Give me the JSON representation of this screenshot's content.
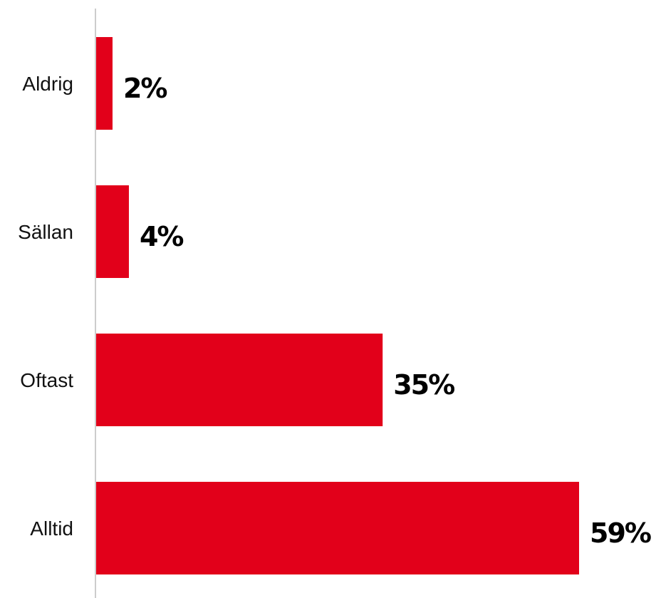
{
  "chart_data": {
    "type": "bar",
    "orientation": "horizontal",
    "categories": [
      "Aldrig",
      "Sällan",
      "Oftast",
      "Alltid"
    ],
    "values": [
      2,
      4,
      35,
      59
    ],
    "value_labels": [
      "2%",
      "4%",
      "35%",
      "59%"
    ],
    "unit": "%",
    "xlim": [
      0,
      59
    ],
    "grid": false,
    "legend": "none",
    "colors": {
      "bar": "#e2001a",
      "axis": "#cccccc"
    }
  }
}
